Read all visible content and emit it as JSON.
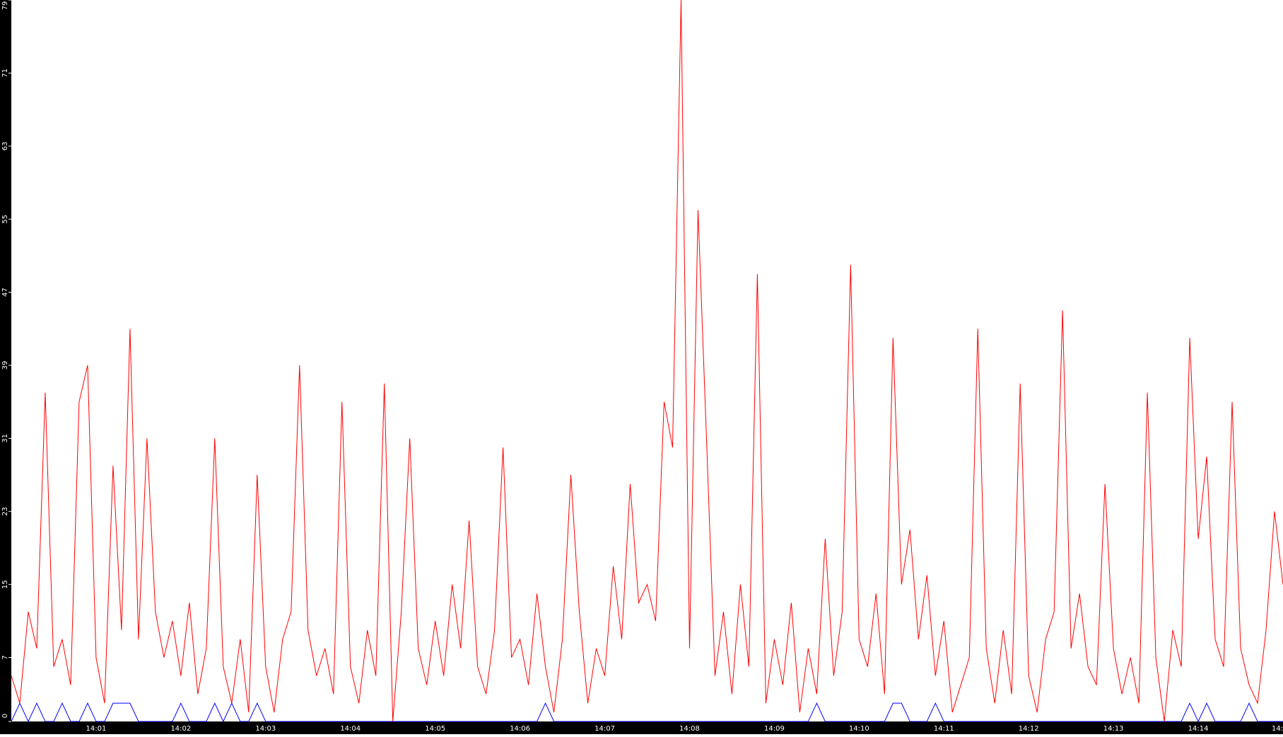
{
  "chart_data": {
    "type": "line",
    "categories": [
      null,
      null,
      null,
      null,
      null,
      null,
      null,
      null,
      null,
      null,
      "14:01",
      null,
      null,
      null,
      null,
      null,
      null,
      null,
      null,
      null,
      "14:02",
      null,
      null,
      null,
      null,
      null,
      null,
      null,
      null,
      null,
      "14:03",
      null,
      null,
      null,
      null,
      null,
      null,
      null,
      null,
      null,
      "14:04",
      null,
      null,
      null,
      null,
      null,
      null,
      null,
      null,
      null,
      "14:05",
      null,
      null,
      null,
      null,
      null,
      null,
      null,
      null,
      null,
      "14:06",
      null,
      null,
      null,
      null,
      null,
      null,
      null,
      null,
      null,
      "14:07",
      null,
      null,
      null,
      null,
      null,
      null,
      null,
      null,
      null,
      "14:08",
      null,
      null,
      null,
      null,
      null,
      null,
      null,
      null,
      null,
      "14:09",
      null,
      null,
      null,
      null,
      null,
      null,
      null,
      null,
      null,
      "14:10",
      null,
      null,
      null,
      null,
      null,
      null,
      null,
      null,
      null,
      "14:11",
      null,
      null,
      null,
      null,
      null,
      null,
      null,
      null,
      null,
      "14:12",
      null,
      null,
      null,
      null,
      null,
      null,
      null,
      null,
      null,
      "14:13",
      null,
      null,
      null,
      null,
      null,
      null,
      null,
      null,
      null,
      "14:14",
      null,
      null,
      null,
      null,
      null,
      null,
      null,
      null,
      null,
      "14:"
    ],
    "series": [
      {
        "color": "#ff0000",
        "values": [
          5,
          2,
          12,
          8,
          36,
          6,
          9,
          4,
          35,
          39,
          7,
          2,
          28,
          10,
          43,
          9,
          31,
          12,
          7,
          11,
          5,
          13,
          3,
          8,
          31,
          6,
          2,
          9,
          1,
          27,
          6,
          1,
          9,
          12,
          39,
          10,
          5,
          8,
          3,
          35,
          6,
          2,
          10,
          5,
          37,
          0,
          12,
          31,
          8,
          4,
          11,
          5,
          15,
          8,
          22,
          6,
          3,
          10,
          30,
          7,
          9,
          4,
          14,
          6,
          1,
          9,
          27,
          12,
          2,
          8,
          5,
          17,
          9,
          26,
          13,
          15,
          11,
          35,
          30,
          79,
          8,
          56,
          31,
          5,
          12,
          3,
          15,
          6,
          49,
          2,
          9,
          4,
          13,
          1,
          8,
          3,
          20,
          5,
          12,
          50,
          9,
          6,
          14,
          3,
          42,
          15,
          21,
          9,
          16,
          5,
          11,
          1,
          4,
          7,
          43,
          8,
          2,
          10,
          3,
          37,
          5,
          1,
          9,
          12,
          45,
          8,
          14,
          6,
          4,
          26,
          8,
          3,
          7,
          2,
          36,
          7,
          0,
          10,
          6,
          42,
          20,
          29,
          9,
          6,
          35,
          8,
          4,
          2,
          10,
          23,
          15
        ]
      },
      {
        "color": "#0000ff",
        "values": [
          0,
          2,
          0,
          2,
          0,
          0,
          2,
          0,
          0,
          2,
          0,
          0,
          2,
          2,
          2,
          0,
          0,
          0,
          0,
          0,
          2,
          0,
          0,
          0,
          2,
          0,
          2,
          0,
          0,
          2,
          0,
          0,
          0,
          0,
          0,
          0,
          0,
          0,
          0,
          0,
          0,
          0,
          0,
          0,
          0,
          0,
          0,
          0,
          0,
          0,
          0,
          0,
          0,
          0,
          0,
          0,
          0,
          0,
          0,
          0,
          0,
          0,
          0,
          2,
          0,
          0,
          0,
          0,
          0,
          0,
          0,
          0,
          0,
          0,
          0,
          0,
          0,
          0,
          0,
          0,
          0,
          0,
          0,
          0,
          0,
          0,
          0,
          0,
          0,
          0,
          0,
          0,
          0,
          0,
          0,
          2,
          0,
          0,
          0,
          0,
          0,
          0,
          0,
          0,
          2,
          2,
          0,
          0,
          0,
          2,
          0,
          0,
          0,
          0,
          0,
          0,
          0,
          0,
          0,
          0,
          0,
          0,
          0,
          0,
          0,
          0,
          0,
          0,
          0,
          0,
          0,
          0,
          0,
          0,
          0,
          0,
          0,
          0,
          0,
          2,
          0,
          2,
          0,
          0,
          0,
          0,
          2,
          0,
          0,
          0,
          0
        ]
      }
    ],
    "ylim": [
      0,
      79
    ],
    "yticks": [
      0,
      7,
      15,
      23,
      31,
      39,
      47,
      55,
      63,
      71,
      79
    ]
  }
}
